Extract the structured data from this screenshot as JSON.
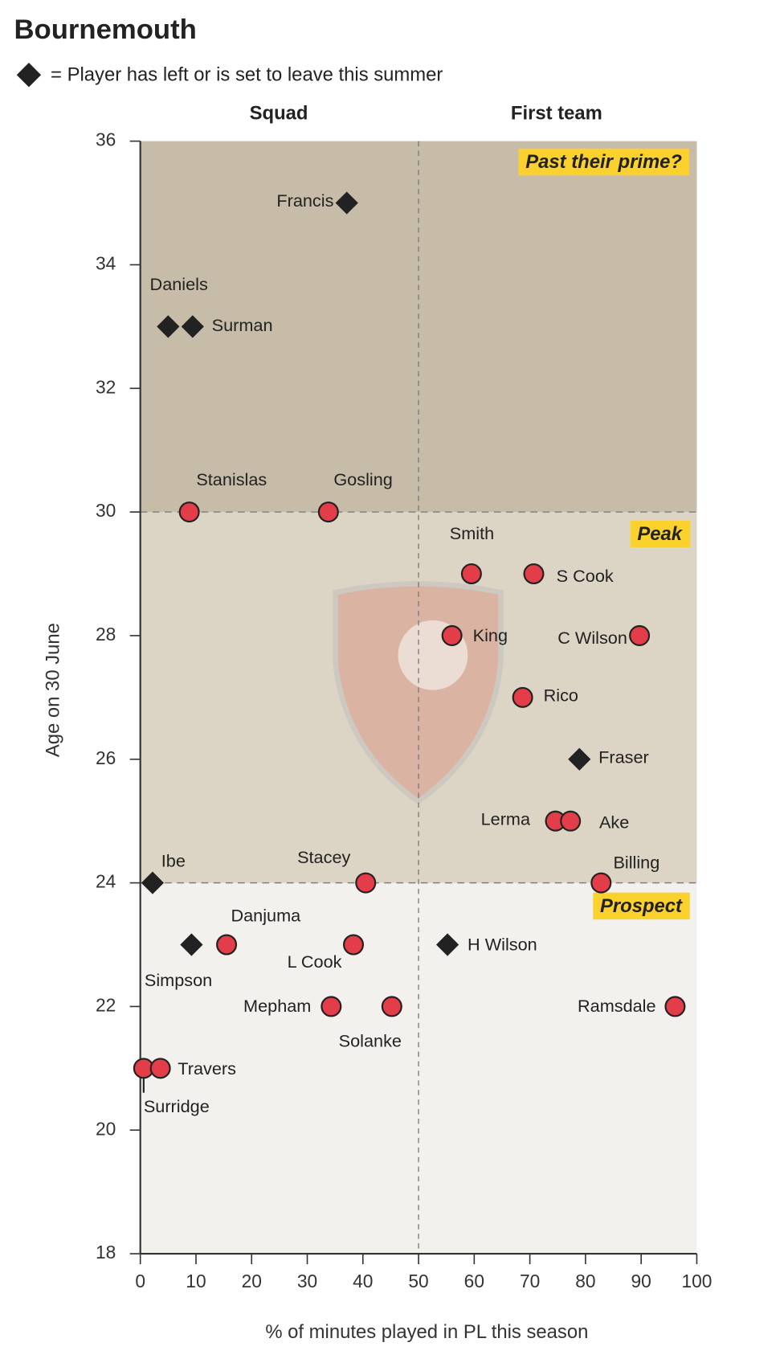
{
  "chart_data": {
    "type": "scatter",
    "title": "Bournemouth",
    "legend_label": "= Player has left or is set to leave this summer",
    "column_headers": [
      "Squad",
      "First team"
    ],
    "zone_labels": [
      "Past their prime?",
      "Peak",
      "Prospect"
    ],
    "x_label": "% of minutes played in PL this season",
    "y_label": "Age on 30 June",
    "xlim": [
      0,
      100
    ],
    "xticks": [
      0,
      10,
      20,
      30,
      40,
      50,
      60,
      70,
      80,
      90,
      100
    ],
    "ylim": [
      18,
      36
    ],
    "yticks": [
      18,
      20,
      22,
      24,
      26,
      28,
      30,
      32,
      34,
      36
    ],
    "x_divider": 50,
    "age_bands": [
      24,
      30
    ],
    "zone_colors": [
      "#f3f1ee",
      "#dcd5c6",
      "#c7bca8"
    ],
    "color": "#e23d48",
    "leaving_color": "#222222",
    "labels": [
      "Francis",
      "Daniels",
      "Surman",
      "Stanislas",
      "Gosling",
      "Smith",
      "S Cook",
      "King",
      "C Wilson",
      "Rico",
      "Fraser",
      "Lerma",
      "Ake",
      "Stacey",
      "Billing",
      "Ibe",
      "Danjuma",
      "Simpson",
      "L Cook",
      "H Wilson",
      "Mepham",
      "Solanke",
      "Ramsdale",
      "Surridge",
      "Travers"
    ],
    "x": [
      37.1,
      5.0,
      9.4,
      8.8,
      33.8,
      59.5,
      70.7,
      56.0,
      89.7,
      68.7,
      78.9,
      74.6,
      77.3,
      40.5,
      82.8,
      2.2,
      15.5,
      9.2,
      38.3,
      55.2,
      34.3,
      45.2,
      96.1,
      0.6,
      3.6
    ],
    "values": [
      35,
      33,
      33,
      30,
      30,
      29,
      29,
      28,
      28,
      27,
      26,
      25,
      25,
      24,
      24,
      24,
      23,
      23,
      23,
      23,
      22,
      22,
      22,
      21,
      21
    ],
    "leaving": [
      true,
      true,
      true,
      false,
      false,
      false,
      false,
      false,
      false,
      false,
      true,
      false,
      false,
      false,
      false,
      true,
      false,
      true,
      false,
      true,
      false,
      false,
      false,
      false,
      false
    ]
  }
}
